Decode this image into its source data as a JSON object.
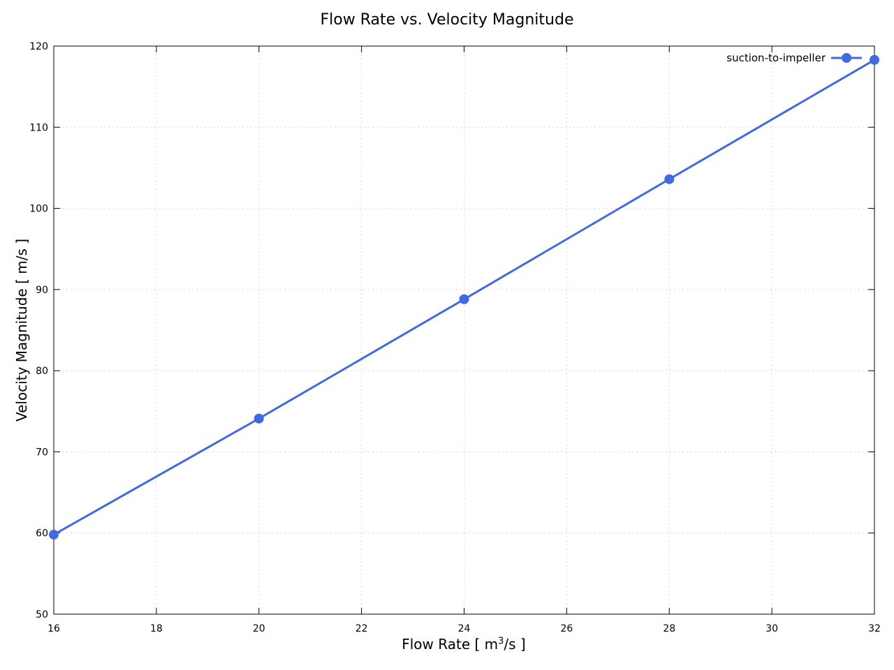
{
  "chart_data": {
    "type": "line",
    "title": "Flow Rate vs. Velocity Magnitude",
    "xlabel_prefix": "Flow Rate [ m",
    "xlabel_sup": "3",
    "xlabel_suffix": "/s ]",
    "ylabel": "Velocity Magnitude [ m/s ]",
    "xlim": [
      16,
      32
    ],
    "ylim": [
      50,
      120
    ],
    "xticks": [
      16,
      18,
      20,
      22,
      24,
      26,
      28,
      30,
      32
    ],
    "yticks": [
      50,
      60,
      70,
      80,
      90,
      100,
      110,
      120
    ],
    "grid": true,
    "legend_position": "top-right",
    "series": [
      {
        "name": "suction-to-impeller",
        "color": "#4169e1",
        "marker": "circle",
        "x": [
          16,
          20,
          24,
          28,
          32
        ],
        "y": [
          59.8,
          74.1,
          88.8,
          103.6,
          118.3
        ]
      }
    ]
  }
}
